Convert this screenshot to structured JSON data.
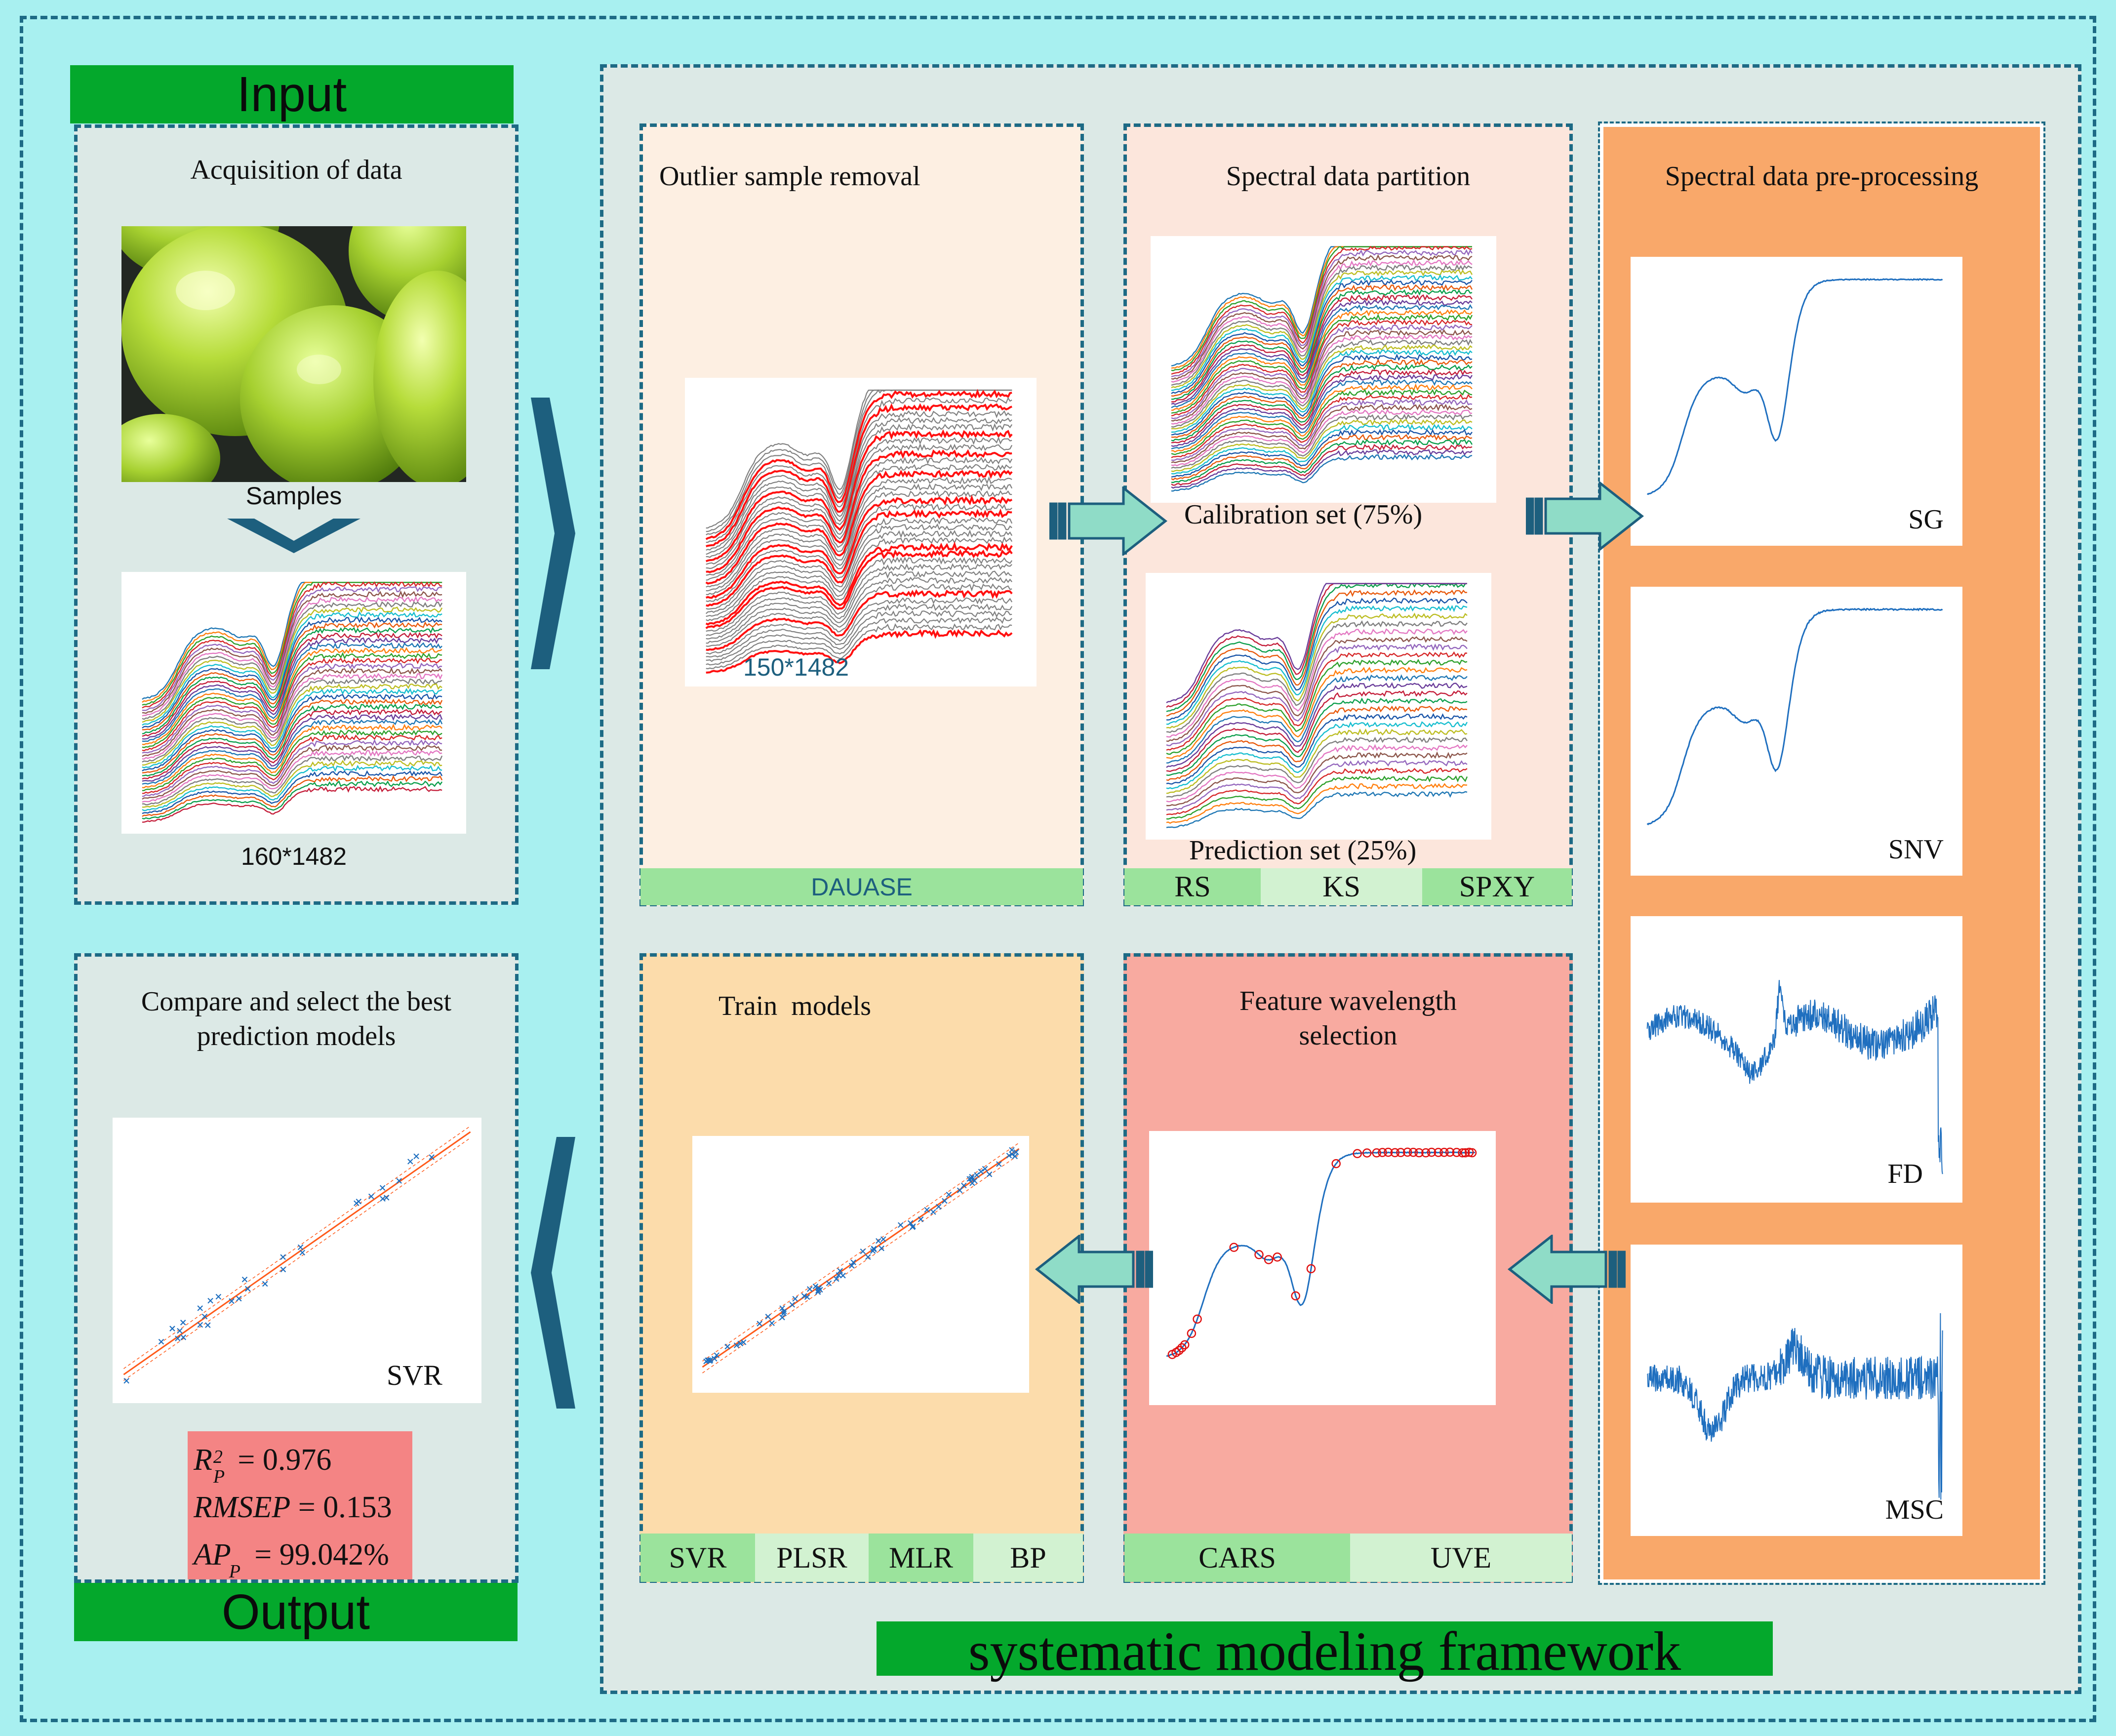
{
  "input": {
    "header": "Input",
    "title": "Acquisition of data",
    "photo_caption": "Samples",
    "matrix_label": "160*1482"
  },
  "outlier": {
    "title": "Outlier sample removal",
    "matrix_label": "150*1482",
    "method": "DAUASE"
  },
  "partition": {
    "title": "Spectral data partition",
    "calibration_label": "Calibration set (75%)",
    "prediction_label": "Prediction set (25%)",
    "methods": [
      "RS",
      "KS",
      "SPXY"
    ]
  },
  "preprocessing": {
    "title": "Spectral data pre-processing",
    "methods": [
      "SG",
      "SNV",
      "FD",
      "MSC"
    ]
  },
  "feature": {
    "title_line1": "Feature wavelength",
    "title_line2": "selection",
    "methods": [
      "CARS",
      "UVE"
    ]
  },
  "train": {
    "title": "Train  models",
    "methods": [
      "SVR",
      "PLSR",
      "MLR",
      "BP"
    ]
  },
  "output": {
    "header": "Output",
    "title_line1": "Compare and select the best",
    "title_line2": "prediction models",
    "model_label": "SVR",
    "metrics": [
      {
        "symbol": "R",
        "sup": "2",
        "sub": "P",
        "value": " = 0.976"
      },
      {
        "symbol": "RMSEP",
        "sup": "",
        "sub": "",
        "value": " = 0.153"
      },
      {
        "symbol": "AP",
        "sup": "",
        "sub": "P",
        "value": " = 99.042%"
      }
    ]
  },
  "framework_label": "systematic modeling framework",
  "colors": {
    "background": "#a8f0f0",
    "panel_grey": "#dce9e6",
    "peach_light": "#fdefe2",
    "peach": "#fce6dc",
    "orange": "#f9a86a",
    "tan": "#fcdcab",
    "salmon": "#f8aaa0",
    "green_bar": "#04a82c",
    "tab_green": "#9be39c",
    "tab_light": "#d2f2d1",
    "spectrum_blue": "#1f6fbf",
    "outlier_red": "#ff1010",
    "fit_orange": "#ff5a1a",
    "metrics_pink": "#f48484",
    "arrow_fill": "#8fdcc7"
  }
}
